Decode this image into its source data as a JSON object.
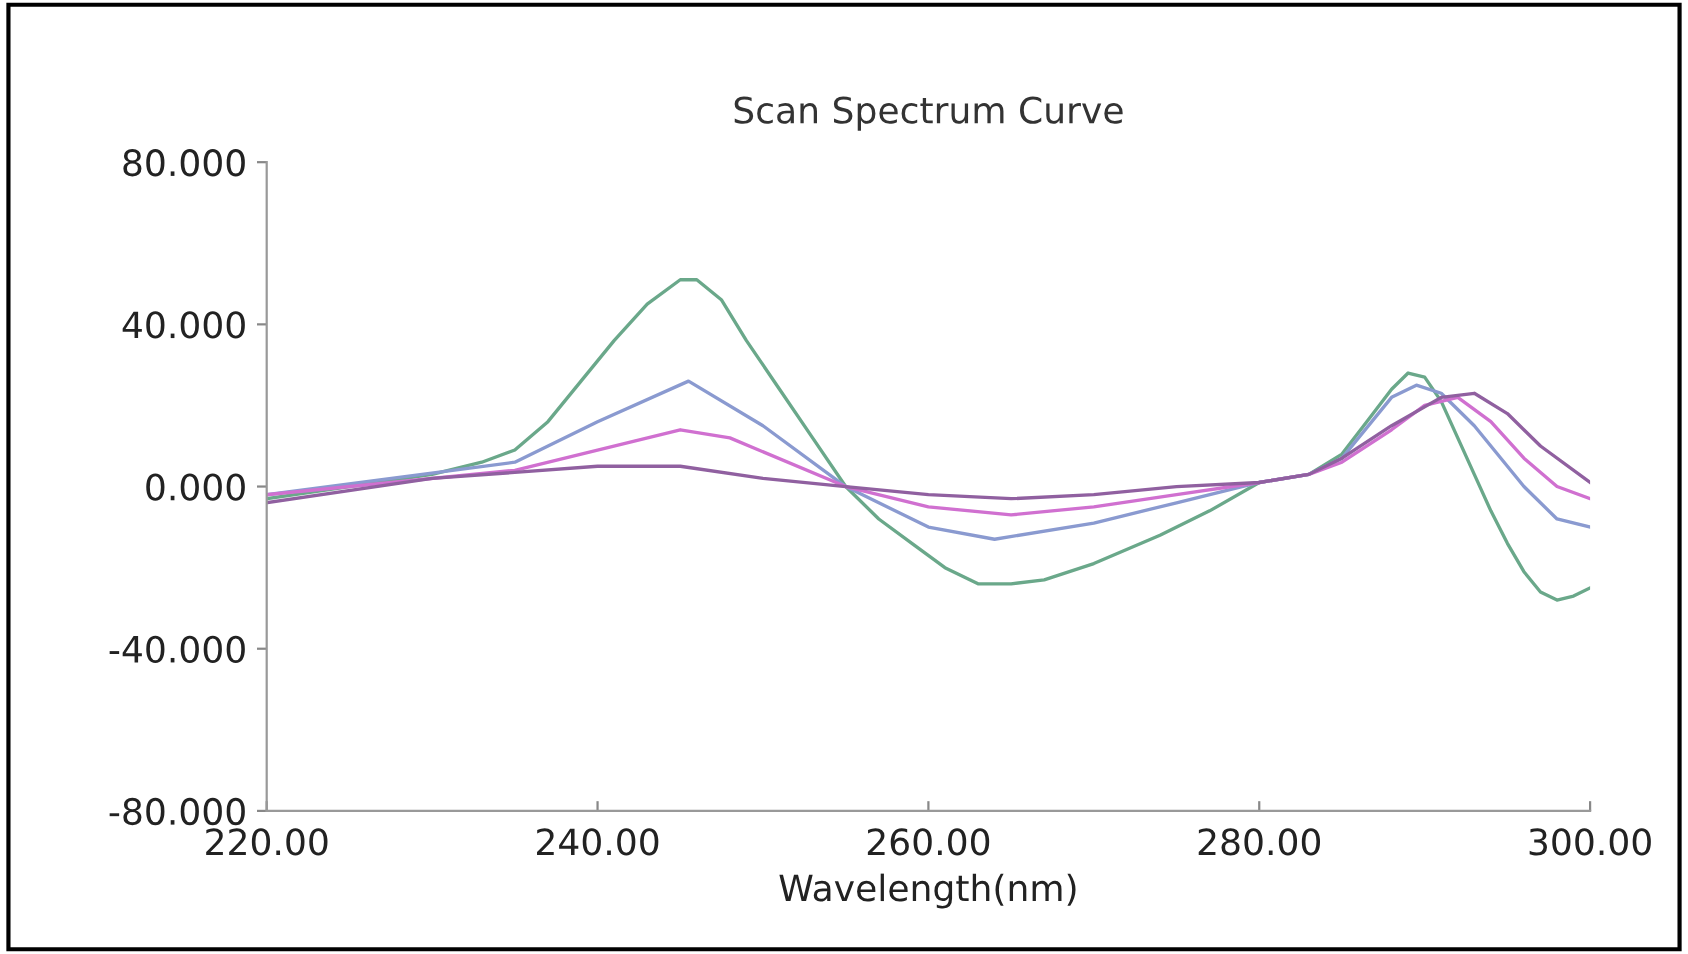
{
  "chart_data": {
    "type": "line",
    "title": "Scan Spectrum Curve",
    "xlabel": "Wavelength(nm)",
    "xlim": [
      220,
      300
    ],
    "xticks": [
      {
        "value": 220,
        "label": "220.00"
      },
      {
        "value": 240,
        "label": "240.00"
      },
      {
        "value": 260,
        "label": "260.00"
      },
      {
        "value": 280,
        "label": "280.00"
      },
      {
        "value": 300,
        "label": "300.00"
      }
    ],
    "ylim": [
      -80,
      80
    ],
    "yticks": [
      {
        "value": -80,
        "label": "-80.000"
      },
      {
        "value": -40,
        "label": "-40.000"
      },
      {
        "value": 0,
        "label": "0.000"
      },
      {
        "value": 40,
        "label": "40.000"
      },
      {
        "value": 80,
        "label": "80.000"
      }
    ],
    "grid": false,
    "marker": "none",
    "line_style": "solid",
    "series": [
      {
        "color": "#6aa88a",
        "x": [
          220,
          225,
          230,
          233,
          235,
          237,
          239,
          241,
          243,
          245,
          246,
          247.5,
          249,
          251,
          253,
          255,
          257,
          259,
          261,
          263,
          265,
          267,
          270,
          274,
          277,
          280,
          283,
          285,
          286.5,
          288,
          289,
          290,
          291,
          292,
          293,
          294,
          295,
          296,
          297,
          298,
          299,
          300
        ],
        "values": [
          -3,
          0,
          3,
          6,
          9,
          16,
          26,
          36,
          45,
          51,
          51,
          46,
          36,
          24,
          12,
          0,
          -8,
          -14,
          -20,
          -24,
          -24,
          -23,
          -19,
          -12,
          -6,
          1,
          3,
          8,
          16,
          24,
          28,
          27,
          21,
          12,
          3,
          -6,
          -14,
          -21,
          -26,
          -28,
          -27,
          -25
        ]
      },
      {
        "color": "#8a9ad0",
        "x": [
          220,
          235,
          240,
          245.5,
          250,
          255,
          260,
          264,
          270,
          275,
          280,
          283,
          285,
          288,
          289.5,
          291,
          293,
          296,
          298,
          300
        ],
        "values": [
          -2,
          6,
          16,
          26,
          15,
          0,
          -10,
          -13,
          -9,
          -4,
          1,
          3,
          7,
          22,
          25,
          23,
          15,
          0,
          -8,
          -10
        ]
      },
      {
        "color": "#d070d0",
        "x": [
          220,
          235,
          240,
          245,
          248,
          255,
          260,
          265,
          270,
          275,
          280,
          283,
          285,
          288,
          290,
          292,
          294,
          296,
          298,
          300
        ],
        "values": [
          -2,
          4,
          9,
          14,
          12,
          0,
          -5,
          -7,
          -5,
          -2,
          1,
          3,
          6,
          14,
          20,
          22,
          16,
          7,
          0,
          -3
        ]
      },
      {
        "color": "#9060a0",
        "x": [
          220,
          230,
          240,
          245,
          250,
          255,
          260,
          265,
          270,
          275,
          280,
          283,
          285,
          288,
          291,
          293,
          295,
          297,
          300
        ],
        "values": [
          -4,
          2,
          5,
          5,
          2,
          0,
          -2,
          -3,
          -2,
          0,
          1,
          3,
          7,
          15,
          22,
          23,
          18,
          10,
          1
        ]
      }
    ]
  }
}
